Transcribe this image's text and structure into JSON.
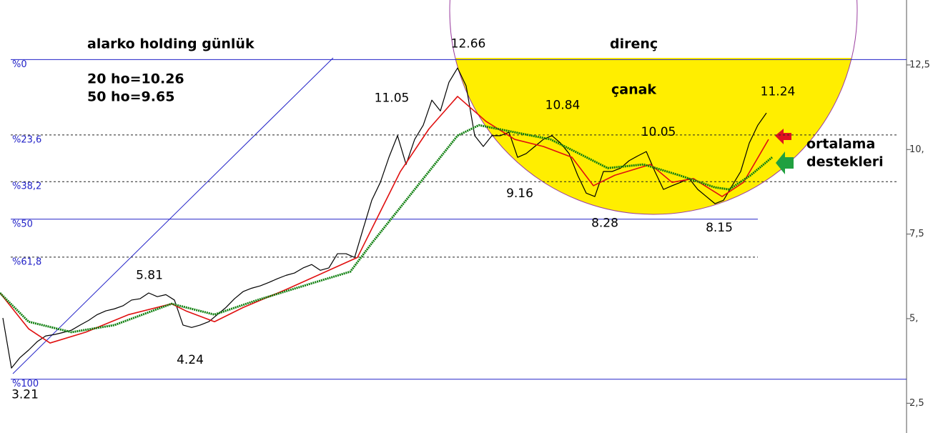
{
  "chart_data": {
    "type": "line",
    "title": "alarko holding günlük",
    "texts": [
      "20 ho=10.26",
      "50 ho=9.65",
      "direnç",
      "çanak",
      "ortalama",
      "destekleri"
    ],
    "xlim": [
      0,
      315
    ],
    "ylim": [
      1.62,
      14.42
    ],
    "yticks": [
      {
        "value": 12.5,
        "label": "12,5"
      },
      {
        "value": 10,
        "label": "10,"
      },
      {
        "value": 7.5,
        "label": "7,5"
      },
      {
        "value": 5,
        "label": "5,"
      },
      {
        "value": 2.5,
        "label": "2,5"
      }
    ],
    "series": [
      {
        "color": "#000000",
        "x": [
          1,
          4,
          7,
          10,
          13,
          16,
          19,
          22,
          25,
          28,
          31,
          34,
          37,
          40,
          43,
          46,
          49,
          52,
          55,
          58,
          61,
          64,
          67,
          70,
          73,
          76,
          79,
          82,
          85,
          88,
          91,
          94,
          97,
          100,
          103,
          106,
          109,
          112,
          115,
          118,
          121,
          124,
          127,
          130,
          133,
          136,
          139,
          142,
          145,
          148,
          151,
          154,
          157,
          160,
          163,
          166,
          169,
          172,
          175,
          178,
          181,
          184,
          187,
          190,
          193,
          196,
          199,
          202,
          205,
          208,
          211,
          214,
          217,
          220,
          223,
          226,
          229,
          232,
          235,
          238,
          241,
          244,
          247,
          250,
          253,
          256,
          259,
          262,
          265,
          268
        ],
        "values": [
          5.02,
          3.54,
          3.85,
          4.07,
          4.32,
          4.49,
          4.53,
          4.59,
          4.66,
          4.81,
          4.95,
          5.12,
          5.23,
          5.29,
          5.38,
          5.55,
          5.59,
          5.76,
          5.65,
          5.71,
          5.55,
          4.81,
          4.74,
          4.81,
          4.91,
          5.12,
          5.33,
          5.59,
          5.8,
          5.9,
          5.97,
          6.07,
          6.18,
          6.28,
          6.35,
          6.5,
          6.6,
          6.43,
          6.5,
          6.92,
          6.92,
          6.81,
          7.66,
          8.5,
          9.03,
          9.77,
          10.41,
          9.56,
          10.3,
          10.72,
          11.46,
          11.14,
          11.99,
          12.41,
          11.88,
          10.41,
          10.09,
          10.41,
          10.41,
          10.51,
          9.77,
          9.88,
          10.09,
          10.3,
          10.41,
          10.19,
          9.88,
          9.24,
          8.71,
          8.61,
          9.35,
          9.35,
          9.45,
          9.67,
          9.81,
          9.94,
          9.35,
          8.82,
          8.93,
          9.03,
          9.14,
          8.82,
          8.61,
          8.4,
          8.5,
          8.93,
          9.35,
          10.19,
          10.72,
          11.08
        ]
      },
      {
        "color": "#e01010",
        "x": [
          0,
          10,
          17.5,
          30,
          45,
          60,
          65,
          75,
          85,
          100,
          115,
          125,
          132.5,
          140,
          150,
          160,
          170,
          180,
          190,
          200,
          207.5,
          215,
          227.5,
          235,
          242.5,
          252.5,
          260,
          268.75
        ],
        "values": [
          5.76,
          4.7,
          4.28,
          4.6,
          5.12,
          5.44,
          5.23,
          4.91,
          5.33,
          5.86,
          6.43,
          6.81,
          8.08,
          9.35,
          10.61,
          11.57,
          10.83,
          10.3,
          10.09,
          9.77,
          8.93,
          9.24,
          9.56,
          9.03,
          9.14,
          8.61,
          9.03,
          10.3
        ]
      },
      {
        "color": "#108010",
        "x": [
          0,
          10,
          25,
          40,
          60,
          75,
          90,
          110,
          122.5,
          130,
          140,
          150,
          160,
          167.5,
          180,
          192.5,
          202.5,
          212.5,
          225,
          237.5,
          250,
          255,
          262.5,
          270
        ],
        "values": [
          5.76,
          4.91,
          4.6,
          4.81,
          5.44,
          5.12,
          5.55,
          6.07,
          6.39,
          7.23,
          8.29,
          9.35,
          10.41,
          10.72,
          10.51,
          10.3,
          9.88,
          9.45,
          9.56,
          9.24,
          8.88,
          8.82,
          9.24,
          9.77
        ]
      }
    ],
    "fib_levels": [
      {
        "value": 12.66,
        "label": "%0"
      },
      {
        "value": 10.43,
        "label": "%23,6"
      },
      {
        "value": 9.05,
        "label": "%38,2"
      },
      {
        "value": 7.94,
        "label": "%50"
      },
      {
        "value": 6.82,
        "label": "%61,8"
      },
      {
        "value": 3.21,
        "label": "%100"
      }
    ],
    "annotations": [
      {
        "x": 163.75,
        "value": 12.66,
        "position": "above"
      },
      {
        "x": 137,
        "value": 11.05,
        "position": "above"
      },
      {
        "x": 196.75,
        "value": 10.84,
        "position": "above"
      },
      {
        "x": 230.25,
        "value": 10.05,
        "position": "above"
      },
      {
        "x": 272,
        "value": 11.24,
        "position": "above"
      },
      {
        "x": 181.75,
        "value": 9.16,
        "position": "below"
      },
      {
        "x": 211.5,
        "value": 8.28,
        "position": "below"
      },
      {
        "x": 251.5,
        "value": 8.15,
        "position": "below"
      },
      {
        "x": 52.25,
        "value": 5.81,
        "position": "above"
      },
      {
        "x": 66.5,
        "value": 4.24,
        "position": "below"
      },
      {
        "x": 8.75,
        "value": 3.21,
        "position": "below"
      }
    ]
  }
}
